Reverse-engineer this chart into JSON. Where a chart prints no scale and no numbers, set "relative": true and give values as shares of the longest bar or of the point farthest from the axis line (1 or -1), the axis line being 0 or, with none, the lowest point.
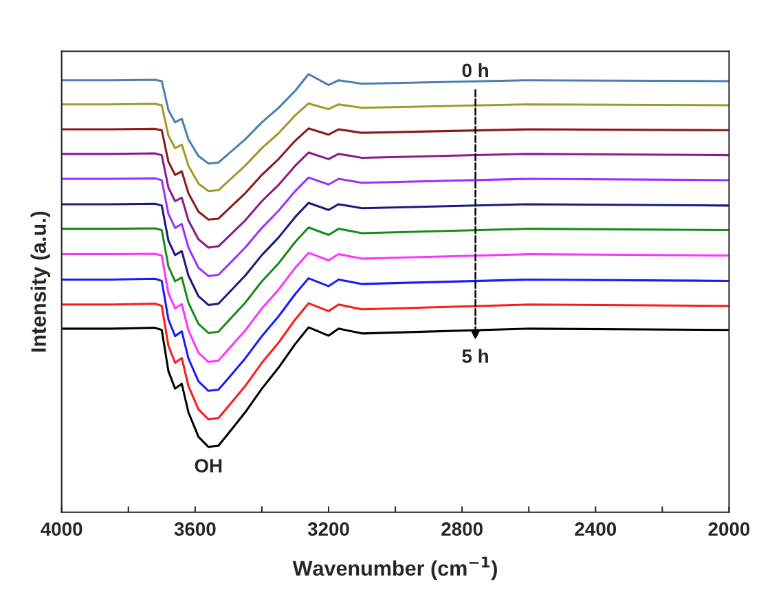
{
  "chart_data": {
    "type": "line",
    "relative": true,
    "xlabel": "Wavenumber (cm$^{−1}$)",
    "ylabel": "Intensity (a.u.)",
    "xlim": [
      4000,
      2000
    ],
    "xticks": [
      4000,
      {
        "value": 3800,
        "label": null
      },
      3600,
      {
        "value": 3400,
        "label": null
      },
      3200,
      {
        "value": 3000,
        "label": null
      },
      2800,
      {
        "value": 2600,
        "label": null
      },
      2400,
      {
        "value": 2200,
        "label": null
      },
      2000
    ],
    "tick_labels": "x",
    "grid": false,
    "legend": false,
    "marker": "none",
    "line_style": "solid",
    "x": [
      4000,
      3850,
      3720,
      3700,
      3680,
      3660,
      3640,
      3620,
      3590,
      3560,
      3530,
      3500,
      3450,
      3400,
      3350,
      3300,
      3260,
      3200,
      3170,
      3100,
      2600,
      2000
    ],
    "series": [
      {
        "color": "#4a7fb0",
        "values": [
          0.986,
          0.986,
          0.987,
          0.984,
          0.918,
          0.89,
          0.898,
          0.851,
          0.813,
          0.796,
          0.798,
          0.818,
          0.851,
          0.89,
          0.923,
          0.962,
          1.0,
          0.975,
          0.986,
          0.978,
          0.986,
          0.984
        ]
      },
      {
        "color": "#a09a28",
        "values": [
          0.931,
          0.931,
          0.932,
          0.929,
          0.86,
          0.831,
          0.839,
          0.791,
          0.75,
          0.733,
          0.735,
          0.756,
          0.791,
          0.831,
          0.865,
          0.906,
          0.933,
          0.92,
          0.931,
          0.923,
          0.931,
          0.929
        ]
      },
      {
        "color": "#8b1a1a",
        "values": [
          0.874,
          0.874,
          0.875,
          0.872,
          0.8,
          0.77,
          0.778,
          0.728,
          0.686,
          0.668,
          0.67,
          0.692,
          0.728,
          0.77,
          0.806,
          0.848,
          0.876,
          0.862,
          0.874,
          0.866,
          0.874,
          0.872
        ]
      },
      {
        "color": "#8b1a8b",
        "values": [
          0.818,
          0.818,
          0.819,
          0.815,
          0.741,
          0.71,
          0.718,
          0.666,
          0.623,
          0.604,
          0.607,
          0.629,
          0.666,
          0.71,
          0.747,
          0.791,
          0.821,
          0.806,
          0.818,
          0.809,
          0.818,
          0.815
        ]
      },
      {
        "color": "#9933ff",
        "values": [
          0.761,
          0.761,
          0.762,
          0.758,
          0.681,
          0.649,
          0.658,
          0.604,
          0.558,
          0.539,
          0.542,
          0.565,
          0.604,
          0.649,
          0.688,
          0.733,
          0.764,
          0.748,
          0.761,
          0.752,
          0.761,
          0.758
        ]
      },
      {
        "color": "#1a1a80",
        "values": [
          0.703,
          0.703,
          0.704,
          0.7,
          0.62,
          0.587,
          0.596,
          0.54,
          0.493,
          0.473,
          0.476,
          0.5,
          0.54,
          0.587,
          0.627,
          0.674,
          0.706,
          0.69,
          0.703,
          0.694,
          0.703,
          0.7
        ]
      },
      {
        "color": "#1a8a1a",
        "values": [
          0.647,
          0.647,
          0.648,
          0.644,
          0.561,
          0.527,
          0.536,
          0.478,
          0.43,
          0.409,
          0.412,
          0.437,
          0.478,
          0.527,
          0.568,
          0.617,
          0.65,
          0.633,
          0.647,
          0.637,
          0.647,
          0.644
        ]
      },
      {
        "color": "#ff33ff",
        "values": [
          0.589,
          0.589,
          0.59,
          0.586,
          0.5,
          0.465,
          0.475,
          0.415,
          0.364,
          0.343,
          0.346,
          0.372,
          0.415,
          0.465,
          0.508,
          0.558,
          0.592,
          0.575,
          0.589,
          0.579,
          0.589,
          0.586
        ]
      },
      {
        "color": "#1a1aff",
        "values": [
          0.531,
          0.531,
          0.533,
          0.528,
          0.44,
          0.402,
          0.413,
          0.351,
          0.299,
          0.277,
          0.28,
          0.306,
          0.351,
          0.402,
          0.447,
          0.498,
          0.534,
          0.516,
          0.531,
          0.521,
          0.531,
          0.528
        ]
      },
      {
        "color": "#ff1a1a",
        "values": [
          0.474,
          0.474,
          0.476,
          0.471,
          0.38,
          0.341,
          0.352,
          0.288,
          0.235,
          0.212,
          0.215,
          0.242,
          0.288,
          0.341,
          0.387,
          0.44,
          0.477,
          0.459,
          0.474,
          0.463,
          0.474,
          0.471
        ]
      },
      {
        "color": "#000000",
        "values": [
          0.419,
          0.419,
          0.421,
          0.416,
          0.322,
          0.282,
          0.293,
          0.228,
          0.172,
          0.149,
          0.152,
          0.18,
          0.228,
          0.282,
          0.33,
          0.384,
          0.422,
          0.403,
          0.419,
          0.408,
          0.419,
          0.416
        ]
      }
    ],
    "annotations": [
      {
        "text": "OH",
        "x": 3560,
        "y": 0.149
      },
      "0 h",
      "5 h"
    ]
  }
}
